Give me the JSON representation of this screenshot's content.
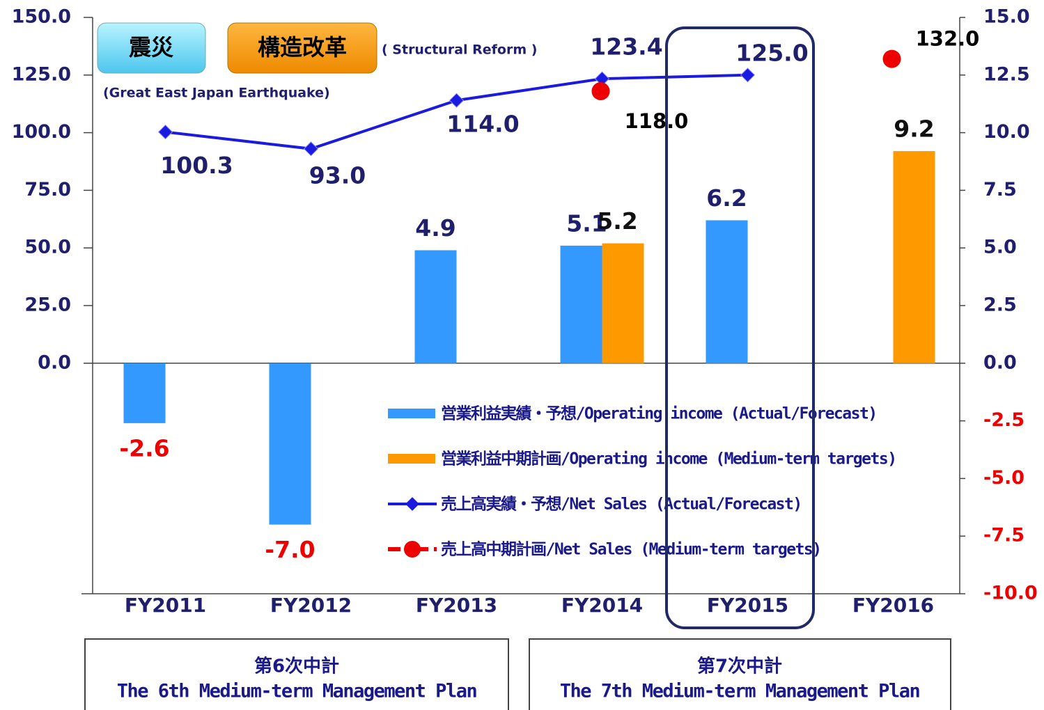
{
  "chart_data": {
    "type": "bar_line",
    "categories": [
      "FY2011",
      "FY2012",
      "FY2013",
      "FY2014",
      "FY2015",
      "FY2016"
    ],
    "ylim": [
      -100,
      150
    ],
    "yticks": [
      {
        "value": 0,
        "label": "0.0"
      },
      {
        "value": 25,
        "label": "25.0"
      },
      {
        "value": 50,
        "label": "50.0"
      },
      {
        "value": 75,
        "label": "75.0"
      },
      {
        "value": 100,
        "label": "100.0"
      },
      {
        "value": 125,
        "label": "125.0"
      },
      {
        "value": 150,
        "label": "150.0"
      }
    ],
    "y2lim": [
      -10,
      15
    ],
    "y2ticks": [
      {
        "value": -10,
        "label": "-10.0"
      },
      {
        "value": -7.5,
        "label": "-7.5"
      },
      {
        "value": -5,
        "label": "-5.0"
      },
      {
        "value": -2.5,
        "label": "-2.5"
      },
      {
        "value": 0,
        "label": "0.0"
      },
      {
        "value": 2.5,
        "label": "2.5"
      },
      {
        "value": 5,
        "label": "5.0"
      },
      {
        "value": 7.5,
        "label": "7.5"
      },
      {
        "value": 10,
        "label": "10.0"
      },
      {
        "value": 12.5,
        "label": "12.5"
      },
      {
        "value": 15,
        "label": "15.0"
      }
    ],
    "series": [
      {
        "name": "営業利益実績・予想/Operating income (Actual/Forecast)",
        "type": "bar",
        "axis": "y2",
        "color": "#3399ff",
        "values": [
          -2.6,
          -7.0,
          4.9,
          5.1,
          6.2,
          null
        ],
        "value_labels": [
          "-2.6",
          "-7.0",
          "4.9",
          "5.1",
          "6.2",
          null
        ]
      },
      {
        "name": "営業利益中期計画/Operating income (Medium-term targets)",
        "type": "bar",
        "axis": "y2",
        "color": "#ff9900",
        "values": [
          null,
          null,
          null,
          5.2,
          null,
          9.2
        ],
        "value_labels": [
          null,
          null,
          null,
          "5.2",
          null,
          "9.2"
        ]
      },
      {
        "name": "売上高実績・予想/Net Sales (Actual/Forecast)",
        "type": "line",
        "color": "#1a1ae0",
        "values": [
          100.3,
          93.0,
          114.0,
          123.4,
          125.0,
          null
        ],
        "value_labels": [
          "100.3",
          "93.0",
          "114.0",
          "123.4",
          "125.0",
          null
        ]
      },
      {
        "name": "売上高中期計画/Net Sales (Medium-term targets)",
        "type": "scatter",
        "color": "#ee0000",
        "values": [
          null,
          null,
          null,
          118.0,
          null,
          132.0
        ],
        "value_labels": [
          null,
          null,
          null,
          "118.0",
          null,
          "132.0"
        ]
      }
    ],
    "annotations": [
      {
        "label": "震災",
        "note": "(Great East Japan Earthquake)"
      },
      {
        "label": "構造改革",
        "note": "( Structural Reform )"
      }
    ],
    "plans": [
      {
        "title": "第6次中計",
        "subtitle": "The 6th Medium-term Management Plan"
      },
      {
        "title": "第7次中計",
        "subtitle": "The 7th Medium-term Management Plan"
      }
    ],
    "negative_color": "#ee0000",
    "legend": "lower center"
  }
}
